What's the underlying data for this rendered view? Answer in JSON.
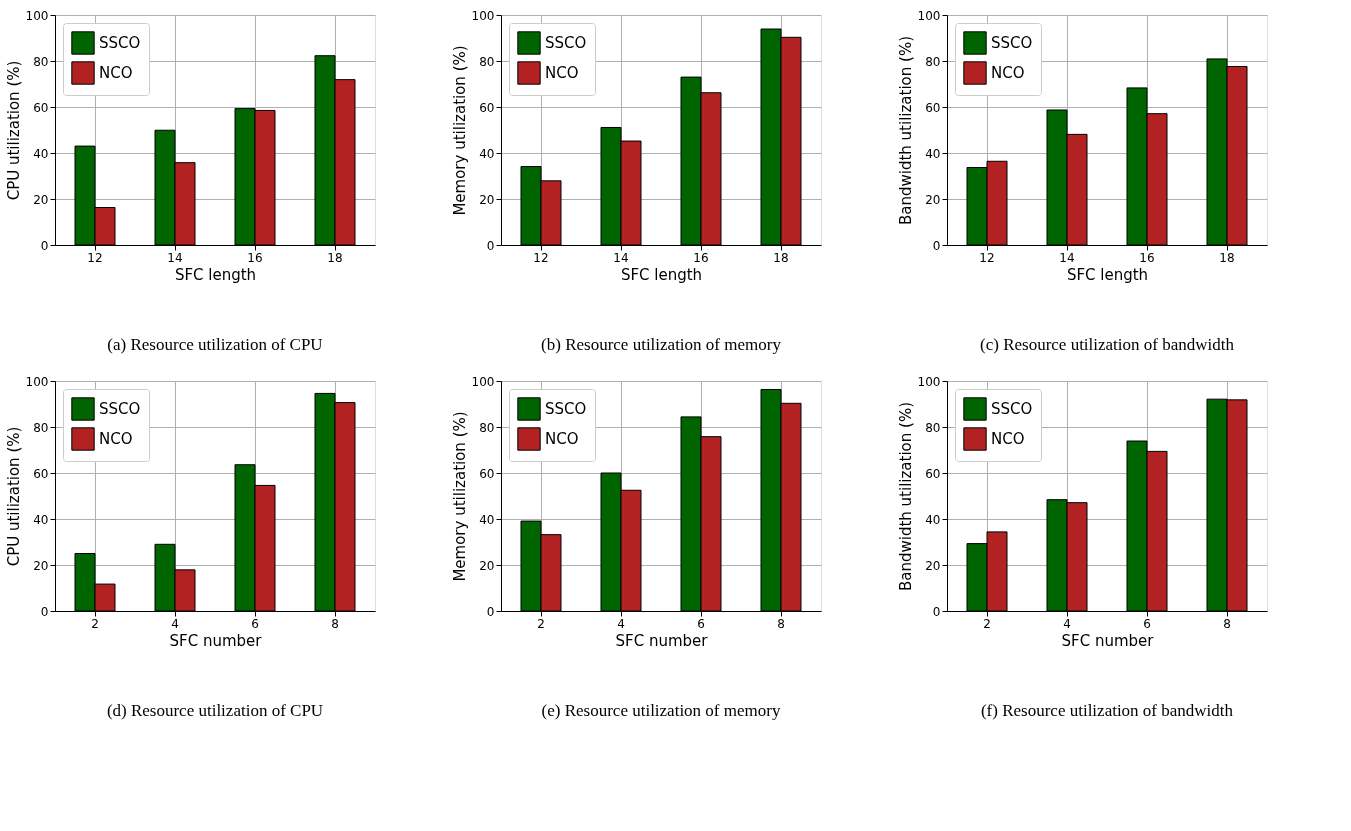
{
  "chart_data": [
    {
      "type": "bar",
      "title": "(a) Resource utilization of CPU",
      "xlabel": "SFC length",
      "ylabel": "CPU utilization (%)",
      "categories": [
        "12",
        "14",
        "16",
        "18"
      ],
      "series": [
        {
          "name": "SSCO",
          "color": "#006400",
          "values": [
            43.0,
            49.9,
            59.3,
            82.3
          ]
        },
        {
          "name": "NCO",
          "color": "#b22222",
          "values": [
            16.3,
            35.8,
            58.5,
            71.9
          ]
        }
      ],
      "ylim": [
        0,
        100
      ],
      "yticks": [
        0,
        20,
        40,
        60,
        80,
        100
      ],
      "grid": true,
      "legend": "top left"
    },
    {
      "type": "bar",
      "title": "(b) Resource utilization of memory",
      "xlabel": "SFC length",
      "ylabel": "Memory utilization (%)",
      "categories": [
        "12",
        "14",
        "16",
        "18"
      ],
      "series": [
        {
          "name": "SSCO",
          "color": "#006400",
          "values": [
            34.1,
            51.1,
            73.0,
            93.9
          ]
        },
        {
          "name": "NCO",
          "color": "#b22222",
          "values": [
            27.9,
            45.2,
            66.2,
            90.3
          ]
        }
      ],
      "ylim": [
        0,
        100
      ],
      "yticks": [
        0,
        20,
        40,
        60,
        80,
        100
      ],
      "grid": true,
      "legend": "top left"
    },
    {
      "type": "bar",
      "title": "(c) Resource utilization of bandwidth",
      "xlabel": "SFC length",
      "ylabel": "Bandwidth utilization (%)",
      "categories": [
        "12",
        "14",
        "16",
        "18"
      ],
      "series": [
        {
          "name": "SSCO",
          "color": "#006400",
          "values": [
            33.7,
            58.7,
            68.3,
            80.9
          ]
        },
        {
          "name": "NCO",
          "color": "#b22222",
          "values": [
            36.4,
            48.1,
            57.1,
            77.6
          ]
        }
      ],
      "ylim": [
        0,
        100
      ],
      "yticks": [
        0,
        20,
        40,
        60,
        80,
        100
      ],
      "grid": true,
      "legend": "top left"
    },
    {
      "type": "bar",
      "title": "(d) Resource utilization of CPU",
      "xlabel": "SFC number",
      "ylabel": "CPU utilization (%)",
      "categories": [
        "2",
        "4",
        "6",
        "8"
      ],
      "series": [
        {
          "name": "SSCO",
          "color": "#006400",
          "values": [
            25.0,
            29.0,
            63.6,
            94.6
          ]
        },
        {
          "name": "NCO",
          "color": "#b22222",
          "values": [
            11.7,
            17.9,
            54.6,
            90.6
          ]
        }
      ],
      "ylim": [
        0,
        100
      ],
      "yticks": [
        0,
        20,
        40,
        60,
        80,
        100
      ],
      "grid": true,
      "legend": "top left"
    },
    {
      "type": "bar",
      "title": "(e) Resource utilization of memory",
      "xlabel": "SFC number",
      "ylabel": "Memory utilization (%)",
      "categories": [
        "2",
        "4",
        "6",
        "8"
      ],
      "series": [
        {
          "name": "SSCO",
          "color": "#006400",
          "values": [
            39.1,
            60.0,
            84.4,
            96.3
          ]
        },
        {
          "name": "NCO",
          "color": "#b22222",
          "values": [
            33.2,
            52.5,
            75.8,
            90.3
          ]
        }
      ],
      "ylim": [
        0,
        100
      ],
      "yticks": [
        0,
        20,
        40,
        60,
        80,
        100
      ],
      "grid": true,
      "legend": "top left"
    },
    {
      "type": "bar",
      "title": "(f) Resource utilization of bandwidth",
      "xlabel": "SFC number",
      "ylabel": "Bandwidth utilization (%)",
      "categories": [
        "2",
        "4",
        "6",
        "8"
      ],
      "series": [
        {
          "name": "SSCO",
          "color": "#006400",
          "values": [
            29.3,
            48.4,
            73.9,
            92.1
          ]
        },
        {
          "name": "NCO",
          "color": "#b22222",
          "values": [
            34.4,
            47.1,
            69.4,
            91.8
          ]
        }
      ],
      "ylim": [
        0,
        100
      ],
      "yticks": [
        0,
        20,
        40,
        60,
        80,
        100
      ],
      "grid": true,
      "legend": "top left"
    }
  ]
}
